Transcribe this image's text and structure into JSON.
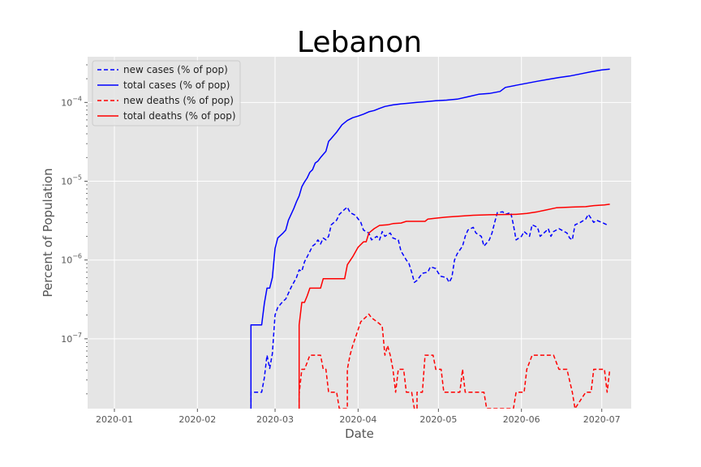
{
  "chart_data": {
    "type": "line",
    "title": "Lebanon",
    "xlabel": "Date",
    "ylabel": "Percent of Population",
    "yscale": "log",
    "ylim": [
      1.3e-08,
      0.00038
    ],
    "xlim": [
      "2019-12-22",
      "2020-07-12"
    ],
    "grid": true,
    "legend_position": "top-left",
    "x_ticks": [
      "2020-01",
      "2020-02",
      "2020-03",
      "2020-04",
      "2020-05",
      "2020-06",
      "2020-07"
    ],
    "y_ticks": [
      {
        "label": "10",
        "exp": "−4",
        "value": 0.0001
      },
      {
        "label": "10",
        "exp": "−5",
        "value": 1e-05
      },
      {
        "label": "10",
        "exp": "−6",
        "value": 1e-06
      },
      {
        "label": "10",
        "exp": "−7",
        "value": 1e-07
      }
    ],
    "series": [
      {
        "name": "new cases (% of pop)",
        "color": "#0000ff",
        "dash": "dashed",
        "points": [
          [
            "2020-02-21",
            1.3e-08
          ],
          [
            "2020-02-21",
            2.1e-08
          ],
          [
            "2020-02-25",
            2.1e-08
          ],
          [
            "2020-02-26",
            3.2e-08
          ],
          [
            "2020-02-27",
            6.2e-08
          ],
          [
            "2020-02-28",
            4.2e-08
          ],
          [
            "2020-02-29",
            6.5e-08
          ],
          [
            "2020-03-01",
            2e-07
          ],
          [
            "2020-03-02",
            2.5e-07
          ],
          [
            "2020-03-04",
            3e-07
          ],
          [
            "2020-03-05",
            3.2e-07
          ],
          [
            "2020-03-07",
            4.5e-07
          ],
          [
            "2020-03-09",
            6e-07
          ],
          [
            "2020-03-10",
            7.5e-07
          ],
          [
            "2020-03-11",
            7.2e-07
          ],
          [
            "2020-03-12",
            9.5e-07
          ],
          [
            "2020-03-13",
            1.1e-06
          ],
          [
            "2020-03-15",
            1.5e-06
          ],
          [
            "2020-03-16",
            1.6e-06
          ],
          [
            "2020-03-17",
            1.8e-06
          ],
          [
            "2020-03-18",
            1.6e-06
          ],
          [
            "2020-03-19",
            1.9e-06
          ],
          [
            "2020-03-20",
            1.8e-06
          ],
          [
            "2020-03-21",
            2e-06
          ],
          [
            "2020-03-22",
            2.8e-06
          ],
          [
            "2020-03-24",
            3.2e-06
          ],
          [
            "2020-03-25",
            3.8e-06
          ],
          [
            "2020-03-27",
            4.4e-06
          ],
          [
            "2020-03-28",
            4.7e-06
          ],
          [
            "2020-03-29",
            4e-06
          ],
          [
            "2020-03-31",
            3.7e-06
          ],
          [
            "2020-04-02",
            3e-06
          ],
          [
            "2020-04-03",
            2.4e-06
          ],
          [
            "2020-04-05",
            2.2e-06
          ],
          [
            "2020-04-06",
            1.8e-06
          ],
          [
            "2020-04-08",
            2e-06
          ],
          [
            "2020-04-09",
            1.8e-06
          ],
          [
            "2020-04-10",
            2.3e-06
          ],
          [
            "2020-04-11",
            2e-06
          ],
          [
            "2020-04-13",
            2.2e-06
          ],
          [
            "2020-04-14",
            1.9e-06
          ],
          [
            "2020-04-16",
            1.8e-06
          ],
          [
            "2020-04-17",
            1.3e-06
          ],
          [
            "2020-04-19",
            1e-06
          ],
          [
            "2020-04-20",
            9e-07
          ],
          [
            "2020-04-21",
            7e-07
          ],
          [
            "2020-04-22",
            5.2e-07
          ],
          [
            "2020-04-23",
            5.5e-07
          ],
          [
            "2020-04-25",
            6.8e-07
          ],
          [
            "2020-04-27",
            7e-07
          ],
          [
            "2020-04-28",
            8.2e-07
          ],
          [
            "2020-04-30",
            7.8e-07
          ],
          [
            "2020-05-01",
            6.8e-07
          ],
          [
            "2020-05-02",
            6.2e-07
          ],
          [
            "2020-05-04",
            6e-07
          ],
          [
            "2020-05-05",
            5.2e-07
          ],
          [
            "2020-05-06",
            6e-07
          ],
          [
            "2020-05-07",
            1e-06
          ],
          [
            "2020-05-08",
            1.2e-06
          ],
          [
            "2020-05-10",
            1.5e-06
          ],
          [
            "2020-05-11",
            2e-06
          ],
          [
            "2020-05-12",
            2.4e-06
          ],
          [
            "2020-05-14",
            2.6e-06
          ],
          [
            "2020-05-15",
            2.2e-06
          ],
          [
            "2020-05-17",
            2e-06
          ],
          [
            "2020-05-18",
            1.5e-06
          ],
          [
            "2020-05-20",
            1.8e-06
          ],
          [
            "2020-05-21",
            2.2e-06
          ],
          [
            "2020-05-22",
            3e-06
          ],
          [
            "2020-05-23",
            4e-06
          ],
          [
            "2020-05-25",
            4.1e-06
          ],
          [
            "2020-05-26",
            3.8e-06
          ],
          [
            "2020-05-28",
            4e-06
          ],
          [
            "2020-05-29",
            2.8e-06
          ],
          [
            "2020-05-30",
            1.8e-06
          ],
          [
            "2020-06-01",
            2e-06
          ],
          [
            "2020-06-02",
            2.3e-06
          ],
          [
            "2020-06-04",
            2e-06
          ],
          [
            "2020-06-05",
            2.8e-06
          ],
          [
            "2020-06-07",
            2.6e-06
          ],
          [
            "2020-06-08",
            2e-06
          ],
          [
            "2020-06-10",
            2.3e-06
          ],
          [
            "2020-06-11",
            2.5e-06
          ],
          [
            "2020-06-12",
            2e-06
          ],
          [
            "2020-06-13",
            2.3e-06
          ],
          [
            "2020-06-15",
            2.5e-06
          ],
          [
            "2020-06-16",
            2.4e-06
          ],
          [
            "2020-06-18",
            2.2e-06
          ],
          [
            "2020-06-19",
            1.9e-06
          ],
          [
            "2020-06-20",
            1.8e-06
          ],
          [
            "2020-06-21",
            2.8e-06
          ],
          [
            "2020-06-23",
            3e-06
          ],
          [
            "2020-06-25",
            3.3e-06
          ],
          [
            "2020-06-26",
            3.8e-06
          ],
          [
            "2020-06-28",
            3e-06
          ],
          [
            "2020-06-29",
            3.2e-06
          ],
          [
            "2020-07-01",
            3e-06
          ],
          [
            "2020-07-03",
            2.8e-06
          ]
        ]
      },
      {
        "name": "total cases (% of pop)",
        "color": "#0000ff",
        "dash": "solid",
        "points": [
          [
            "2020-02-21",
            1.3e-08
          ],
          [
            "2020-02-21",
            1.5e-07
          ],
          [
            "2020-02-25",
            1.5e-07
          ],
          [
            "2020-02-26",
            2.8e-07
          ],
          [
            "2020-02-27",
            4.4e-07
          ],
          [
            "2020-02-28",
            4.4e-07
          ],
          [
            "2020-02-29",
            6e-07
          ],
          [
            "2020-03-01",
            1.4e-06
          ],
          [
            "2020-03-02",
            1.9e-06
          ],
          [
            "2020-03-04",
            2.2e-06
          ],
          [
            "2020-03-05",
            2.4e-06
          ],
          [
            "2020-03-06",
            3.2e-06
          ],
          [
            "2020-03-08",
            4.5e-06
          ],
          [
            "2020-03-09",
            5.5e-06
          ],
          [
            "2020-03-10",
            6.5e-06
          ],
          [
            "2020-03-11",
            8.5e-06
          ],
          [
            "2020-03-12",
            9.8e-06
          ],
          [
            "2020-03-13",
            1.1e-05
          ],
          [
            "2020-03-14",
            1.3e-05
          ],
          [
            "2020-03-15",
            1.4e-05
          ],
          [
            "2020-03-16",
            1.7e-05
          ],
          [
            "2020-03-17",
            1.8e-05
          ],
          [
            "2020-03-18",
            2e-05
          ],
          [
            "2020-03-20",
            2.4e-05
          ],
          [
            "2020-03-21",
            3.2e-05
          ],
          [
            "2020-03-22",
            3.5e-05
          ],
          [
            "2020-03-24",
            4.2e-05
          ],
          [
            "2020-03-26",
            5.2e-05
          ],
          [
            "2020-03-28",
            5.9e-05
          ],
          [
            "2020-03-30",
            6.4e-05
          ],
          [
            "2020-04-01",
            6.7e-05
          ],
          [
            "2020-04-03",
            7.1e-05
          ],
          [
            "2020-04-05",
            7.6e-05
          ],
          [
            "2020-04-07",
            7.9e-05
          ],
          [
            "2020-04-09",
            8.4e-05
          ],
          [
            "2020-04-11",
            8.9e-05
          ],
          [
            "2020-04-14",
            9.3e-05
          ],
          [
            "2020-04-17",
            9.6e-05
          ],
          [
            "2020-04-20",
            9.8e-05
          ],
          [
            "2020-04-23",
            0.0001
          ],
          [
            "2020-04-26",
            0.000102
          ],
          [
            "2020-04-30",
            0.000105
          ],
          [
            "2020-05-04",
            0.000107
          ],
          [
            "2020-05-08",
            0.00011
          ],
          [
            "2020-05-12",
            0.000118
          ],
          [
            "2020-05-16",
            0.000127
          ],
          [
            "2020-05-20",
            0.00013
          ],
          [
            "2020-05-24",
            0.000138
          ],
          [
            "2020-05-26",
            0.000155
          ],
          [
            "2020-05-30",
            0.000165
          ],
          [
            "2020-06-03",
            0.000175
          ],
          [
            "2020-06-07",
            0.000186
          ],
          [
            "2020-06-11",
            0.000196
          ],
          [
            "2020-06-15",
            0.000207
          ],
          [
            "2020-06-19",
            0.000216
          ],
          [
            "2020-06-23",
            0.00023
          ],
          [
            "2020-06-27",
            0.000245
          ],
          [
            "2020-07-01",
            0.000258
          ],
          [
            "2020-07-04",
            0.000265
          ]
        ]
      },
      {
        "name": "new deaths (% of pop)",
        "color": "#ff0000",
        "dash": "dashed",
        "points": [
          [
            "2020-03-10",
            1.3e-08
          ],
          [
            "2020-03-10",
            2e-08
          ],
          [
            "2020-03-11",
            4.1e-08
          ],
          [
            "2020-03-12",
            4.1e-08
          ],
          [
            "2020-03-13",
            5e-08
          ],
          [
            "2020-03-14",
            6.2e-08
          ],
          [
            "2020-03-18",
            6.2e-08
          ],
          [
            "2020-03-19",
            4.1e-08
          ],
          [
            "2020-03-20",
            4.1e-08
          ],
          [
            "2020-03-21",
            2.1e-08
          ],
          [
            "2020-03-24",
            2.1e-08
          ],
          [
            "2020-03-25",
            1.3e-08
          ],
          [
            "2020-03-28",
            1.3e-08
          ],
          [
            "2020-03-28",
            4.1e-08
          ],
          [
            "2020-03-29",
            6.2e-08
          ],
          [
            "2020-03-30",
            8.2e-08
          ],
          [
            "2020-03-31",
            1.03e-07
          ],
          [
            "2020-04-01",
            1.3e-07
          ],
          [
            "2020-04-02",
            1.65e-07
          ],
          [
            "2020-04-04",
            1.9e-07
          ],
          [
            "2020-04-05",
            2.06e-07
          ],
          [
            "2020-04-06",
            1.85e-07
          ],
          [
            "2020-04-08",
            1.65e-07
          ],
          [
            "2020-04-09",
            1.55e-07
          ],
          [
            "2020-04-10",
            1.45e-07
          ],
          [
            "2020-04-11",
            6.2e-08
          ],
          [
            "2020-04-12",
            8.2e-08
          ],
          [
            "2020-04-13",
            6.2e-08
          ],
          [
            "2020-04-14",
            4.1e-08
          ],
          [
            "2020-04-15",
            2.1e-08
          ],
          [
            "2020-04-16",
            4.1e-08
          ],
          [
            "2020-04-18",
            4.1e-08
          ],
          [
            "2020-04-19",
            2.1e-08
          ],
          [
            "2020-04-21",
            2.1e-08
          ],
          [
            "2020-04-22",
            1.3e-08
          ],
          [
            "2020-04-23",
            1.3e-08
          ],
          [
            "2020-04-23",
            2.1e-08
          ],
          [
            "2020-04-25",
            2.1e-08
          ],
          [
            "2020-04-26",
            6.2e-08
          ],
          [
            "2020-04-29",
            6.2e-08
          ],
          [
            "2020-04-30",
            4.1e-08
          ],
          [
            "2020-05-02",
            4.1e-08
          ],
          [
            "2020-05-03",
            2.1e-08
          ],
          [
            "2020-05-09",
            2.1e-08
          ],
          [
            "2020-05-10",
            4.1e-08
          ],
          [
            "2020-05-11",
            2.1e-08
          ],
          [
            "2020-05-18",
            2.1e-08
          ],
          [
            "2020-05-19",
            1.3e-08
          ],
          [
            "2020-05-29",
            1.3e-08
          ],
          [
            "2020-05-30",
            2.1e-08
          ],
          [
            "2020-06-02",
            2.1e-08
          ],
          [
            "2020-06-03",
            4.1e-08
          ],
          [
            "2020-06-05",
            6.2e-08
          ],
          [
            "2020-06-13",
            6.2e-08
          ],
          [
            "2020-06-15",
            4.1e-08
          ],
          [
            "2020-06-18",
            4.1e-08
          ],
          [
            "2020-06-20",
            2.1e-08
          ],
          [
            "2020-06-21",
            1.3e-08
          ],
          [
            "2020-06-25",
            2.1e-08
          ],
          [
            "2020-06-27",
            2.1e-08
          ],
          [
            "2020-06-28",
            4.1e-08
          ],
          [
            "2020-07-02",
            4.1e-08
          ],
          [
            "2020-07-03",
            2.1e-08
          ],
          [
            "2020-07-04",
            4.1e-08
          ]
        ]
      },
      {
        "name": "total deaths (% of pop)",
        "color": "#ff0000",
        "dash": "solid",
        "points": [
          [
            "2020-03-10",
            1.3e-08
          ],
          [
            "2020-03-10",
            1.5e-07
          ],
          [
            "2020-03-11",
            2.9e-07
          ],
          [
            "2020-03-12",
            2.9e-07
          ],
          [
            "2020-03-13",
            3.5e-07
          ],
          [
            "2020-03-14",
            4.4e-07
          ],
          [
            "2020-03-18",
            4.4e-07
          ],
          [
            "2020-03-19",
            5.8e-07
          ],
          [
            "2020-03-27",
            5.8e-07
          ],
          [
            "2020-03-28",
            8.7e-07
          ],
          [
            "2020-03-30",
            1.1e-06
          ],
          [
            "2020-04-01",
            1.45e-06
          ],
          [
            "2020-04-03",
            1.7e-06
          ],
          [
            "2020-04-04",
            1.7e-06
          ],
          [
            "2020-04-05",
            2.2e-06
          ],
          [
            "2020-04-07",
            2.5e-06
          ],
          [
            "2020-04-09",
            2.75e-06
          ],
          [
            "2020-04-12",
            2.8e-06
          ],
          [
            "2020-04-14",
            2.9e-06
          ],
          [
            "2020-04-17",
            2.95e-06
          ],
          [
            "2020-04-19",
            3.1e-06
          ],
          [
            "2020-04-26",
            3.1e-06
          ],
          [
            "2020-04-27",
            3.3e-06
          ],
          [
            "2020-04-30",
            3.4e-06
          ],
          [
            "2020-05-04",
            3.5e-06
          ],
          [
            "2020-05-09",
            3.6e-06
          ],
          [
            "2020-05-14",
            3.7e-06
          ],
          [
            "2020-05-20",
            3.75e-06
          ],
          [
            "2020-05-30",
            3.8e-06
          ],
          [
            "2020-06-03",
            3.9e-06
          ],
          [
            "2020-06-07",
            4.1e-06
          ],
          [
            "2020-06-10",
            4.3e-06
          ],
          [
            "2020-06-14",
            4.6e-06
          ],
          [
            "2020-06-20",
            4.7e-06
          ],
          [
            "2020-06-25",
            4.75e-06
          ],
          [
            "2020-06-28",
            4.9e-06
          ],
          [
            "2020-07-02",
            5e-06
          ],
          [
            "2020-07-04",
            5.1e-06
          ]
        ]
      }
    ]
  }
}
